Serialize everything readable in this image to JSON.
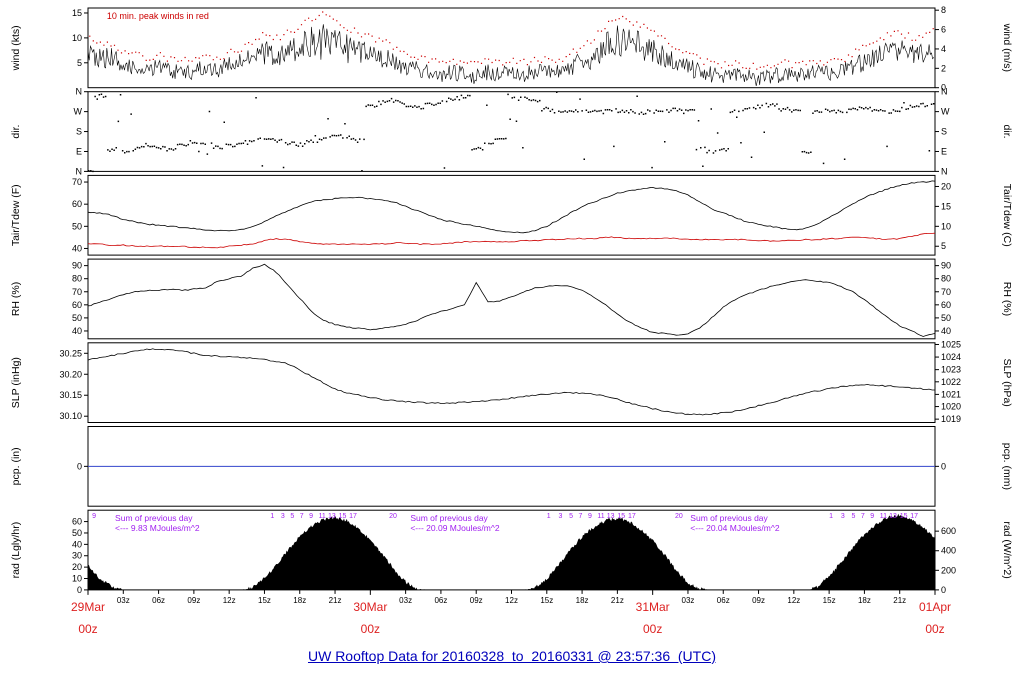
{
  "title": "UW Rooftop Data for 20160328  to  20160331 @ 23:57:36  (UTC)",
  "chart_data": {
    "type": "line",
    "x_unit": "hours since 29Mar 00z (UTC)",
    "x_range": [
      0,
      72
    ],
    "colors": {
      "title": "#0000bb",
      "red": "#cc0000",
      "red_day": "#dd2222",
      "purple": "#a020f0",
      "pcp": "#3344cc",
      "black": "#000000"
    },
    "x_minor_ticks": [
      {
        "t": 3,
        "label": "03z"
      },
      {
        "t": 6,
        "label": "06z"
      },
      {
        "t": 9,
        "label": "09z"
      },
      {
        "t": 12,
        "label": "12z"
      },
      {
        "t": 15,
        "label": "15z"
      },
      {
        "t": 18,
        "label": "18z"
      },
      {
        "t": 21,
        "label": "21z"
      },
      {
        "t": 27,
        "label": "03z"
      },
      {
        "t": 30,
        "label": "06z"
      },
      {
        "t": 33,
        "label": "09z"
      },
      {
        "t": 36,
        "label": "12z"
      },
      {
        "t": 39,
        "label": "15z"
      },
      {
        "t": 42,
        "label": "18z"
      },
      {
        "t": 45,
        "label": "21z"
      },
      {
        "t": 51,
        "label": "03z"
      },
      {
        "t": 54,
        "label": "06z"
      },
      {
        "t": 57,
        "label": "09z"
      },
      {
        "t": 60,
        "label": "12z"
      },
      {
        "t": 63,
        "label": "15z"
      },
      {
        "t": 66,
        "label": "18z"
      },
      {
        "t": 69,
        "label": "21z"
      }
    ],
    "x_day_labels": [
      {
        "t": 0,
        "line1": "29Mar",
        "line2": "00z"
      },
      {
        "t": 24,
        "line1": "30Mar",
        "line2": "00z"
      },
      {
        "t": 48,
        "line1": "31Mar",
        "line2": "00z"
      },
      {
        "t": 72,
        "line1": "01Apr",
        "line2": "00z"
      }
    ],
    "panels": [
      {
        "id": "wind",
        "left_label": "wind (kts)",
        "right_label": "wind (m/s)",
        "domain": [
          0,
          16
        ],
        "left_ticks": [
          {
            "v": 5,
            "label": "5"
          },
          {
            "v": 10,
            "label": "10"
          },
          {
            "v": 15,
            "label": "15"
          }
        ],
        "right_ticks": [
          {
            "v": 0,
            "label": "0"
          },
          {
            "v": 3.89,
            "label": "2"
          },
          {
            "v": 7.78,
            "label": "4"
          },
          {
            "v": 11.67,
            "label": "6"
          },
          {
            "v": 15.56,
            "label": "8"
          }
        ]
      },
      {
        "id": "dir",
        "left_label": "dir.",
        "right_label": "dir.",
        "domain": [
          0,
          360
        ],
        "left_ticks": [
          {
            "v": 0,
            "label": "N"
          },
          {
            "v": 90,
            "label": "E"
          },
          {
            "v": 180,
            "label": "S"
          },
          {
            "v": 270,
            "label": "W"
          },
          {
            "v": 360,
            "label": "N"
          }
        ],
        "right_ticks": [
          {
            "v": 0,
            "label": "N"
          },
          {
            "v": 90,
            "label": "E"
          },
          {
            "v": 180,
            "label": "S"
          },
          {
            "v": 270,
            "label": "W"
          },
          {
            "v": 360,
            "label": "N"
          }
        ]
      },
      {
        "id": "temp",
        "left_label": "Tair/Tdew (F)",
        "right_label": "Tair/Tdew (C)",
        "domain": [
          37,
          73
        ],
        "left_ticks": [
          {
            "v": 40,
            "label": "40"
          },
          {
            "v": 50,
            "label": "50"
          },
          {
            "v": 60,
            "label": "60"
          },
          {
            "v": 70,
            "label": "70"
          }
        ],
        "right_ticks": [
          {
            "v": 41,
            "label": "5"
          },
          {
            "v": 50,
            "label": "10"
          },
          {
            "v": 59,
            "label": "15"
          },
          {
            "v": 68,
            "label": "20"
          }
        ]
      },
      {
        "id": "rh",
        "left_label": "RH (%)",
        "right_label": "RH (%)",
        "domain": [
          34,
          95
        ],
        "left_ticks": [
          {
            "v": 40,
            "label": "40"
          },
          {
            "v": 50,
            "label": "50"
          },
          {
            "v": 60,
            "label": "60"
          },
          {
            "v": 70,
            "label": "70"
          },
          {
            "v": 80,
            "label": "80"
          },
          {
            "v": 90,
            "label": "90"
          }
        ],
        "right_ticks": [
          {
            "v": 40,
            "label": "40"
          },
          {
            "v": 50,
            "label": "50"
          },
          {
            "v": 60,
            "label": "60"
          },
          {
            "v": 70,
            "label": "70"
          },
          {
            "v": 80,
            "label": "80"
          },
          {
            "v": 90,
            "label": "90"
          }
        ]
      },
      {
        "id": "slp",
        "left_label": "SLP (inHg)",
        "right_label": "SLP (hPa)",
        "domain": [
          30.085,
          30.275
        ],
        "left_ticks": [
          {
            "v": 30.1,
            "label": "30.10"
          },
          {
            "v": 30.15,
            "label": "30.15"
          },
          {
            "v": 30.2,
            "label": "30.20"
          },
          {
            "v": 30.25,
            "label": "30.25"
          }
        ],
        "right_ticks": [
          {
            "v": 30.093,
            "label": "1019"
          },
          {
            "v": 30.123,
            "label": "1020"
          },
          {
            "v": 30.152,
            "label": "1021"
          },
          {
            "v": 30.182,
            "label": "1022"
          },
          {
            "v": 30.211,
            "label": "1023"
          },
          {
            "v": 30.241,
            "label": "1024"
          },
          {
            "v": 30.271,
            "label": "1025"
          }
        ]
      },
      {
        "id": "pcp",
        "left_label": "pcp. (in)",
        "right_label": "pcp. (mm)",
        "domain": [
          -0.5,
          0.5
        ],
        "left_ticks": [
          {
            "v": 0,
            "label": "0"
          }
        ],
        "right_ticks": [
          {
            "v": 0,
            "label": "0"
          }
        ]
      },
      {
        "id": "rad",
        "left_label": "rad (Lgly/hr)",
        "right_label": "rad (W/m^2)",
        "domain": [
          0,
          70
        ],
        "left_ticks": [
          {
            "v": 0,
            "label": "0"
          },
          {
            "v": 10,
            "label": "10"
          },
          {
            "v": 20,
            "label": "20"
          },
          {
            "v": 30,
            "label": "30"
          },
          {
            "v": 40,
            "label": "40"
          },
          {
            "v": 50,
            "label": "50"
          },
          {
            "v": 60,
            "label": "60"
          }
        ],
        "right_ticks": [
          {
            "v": 0,
            "label": "0"
          },
          {
            "v": 17.2,
            "label": "200"
          },
          {
            "v": 34.4,
            "label": "400"
          },
          {
            "v": 51.6,
            "label": "600"
          }
        ]
      }
    ],
    "series": {
      "wind_mean_kts": [
        7,
        5.5,
        6,
        4.5,
        4,
        3.5,
        4,
        3,
        3.5,
        3,
        4,
        3.5,
        4,
        5,
        6,
        7,
        6.5,
        7,
        8,
        8.5,
        9,
        8,
        7.5,
        7,
        6.5,
        6,
        5,
        4,
        3.5,
        3,
        2.5,
        3,
        2.5,
        2,
        3,
        2.5,
        3,
        2.5,
        3,
        3.5,
        3,
        4,
        5,
        6,
        8,
        9,
        9,
        8,
        7,
        6,
        5,
        4,
        3,
        2.5,
        2,
        2.5,
        2,
        1.5,
        2,
        2.5,
        2,
        2.5,
        3,
        2.5,
        3,
        4,
        5,
        6,
        7,
        7,
        6.5,
        7,
        8
      ],
      "wind_peak_kts": [
        10,
        9,
        9,
        7,
        6.5,
        6,
        6.5,
        5.5,
        6,
        5.5,
        6.5,
        6,
        7,
        8,
        9.5,
        11,
        10,
        11,
        12.5,
        14,
        15,
        13.5,
        12,
        11,
        10,
        9.5,
        8,
        6.5,
        6,
        5.5,
        5,
        5.5,
        5,
        4.5,
        5.5,
        5,
        5.5,
        5,
        5.5,
        6,
        5.5,
        7,
        8,
        10,
        12.5,
        14,
        13.5,
        12.5,
        11,
        9.5,
        8,
        7,
        5.5,
        5,
        4.5,
        5,
        4.5,
        4,
        4.5,
        5,
        4.5,
        5,
        5.5,
        5,
        5.5,
        7,
        8,
        9,
        10.5,
        11,
        10,
        10.5,
        11.5
      ],
      "dir_deg": [
        355,
        340,
        100,
        85,
        100,
        120,
        110,
        100,
        120,
        130,
        120,
        110,
        120,
        130,
        140,
        150,
        140,
        130,
        120,
        140,
        150,
        160,
        150,
        140,
        300,
        310,
        320,
        300,
        290,
        300,
        310,
        330,
        340,
        100,
        120,
        150,
        340,
        330,
        320,
        280,
        270,
        270,
        275,
        270,
        270,
        275,
        270,
        265,
        270,
        270,
        280,
        270,
        100,
        90,
        100,
        270,
        280,
        290,
        300,
        280,
        270,
        90,
        270,
        275,
        270,
        280,
        290,
        280,
        270,
        280,
        290,
        300,
        310
      ],
      "tair_f": [
        56.5,
        56,
        55,
        53,
        52,
        51,
        50.5,
        50,
        49.5,
        49,
        48.5,
        48,
        48,
        48.5,
        50,
        52,
        55,
        57,
        59,
        61,
        62,
        62.5,
        63,
        63,
        62.5,
        62,
        61,
        59,
        57,
        55,
        53,
        52,
        51,
        50,
        49,
        48,
        47.5,
        47,
        48,
        50,
        53,
        56,
        59,
        61,
        63,
        65,
        66,
        67,
        67.5,
        67,
        66,
        64,
        61,
        58,
        56,
        54,
        52,
        51,
        50,
        49,
        48.5,
        49,
        51,
        54,
        57,
        60,
        63,
        65,
        67,
        68.5,
        69.5,
        70,
        70.5
      ],
      "tdew_f": [
        42,
        42,
        41.5,
        41.5,
        41,
        41,
        41,
        41,
        41,
        40.5,
        40.5,
        40.5,
        41,
        41.5,
        42,
        43.5,
        44.5,
        44,
        43,
        42.5,
        42,
        42,
        42,
        42,
        42,
        42,
        42.5,
        42.5,
        42,
        42,
        42,
        42.5,
        43,
        43,
        43,
        43,
        43,
        43.5,
        43.5,
        44,
        44,
        44.5,
        44.5,
        44.5,
        45,
        45,
        44.5,
        44.5,
        44.5,
        44.5,
        44.5,
        44,
        44,
        44,
        44,
        44,
        44,
        43.5,
        43.5,
        43.5,
        43.5,
        44,
        44,
        44.5,
        44.5,
        45,
        45,
        44.5,
        44,
        44.5,
        45.5,
        46.5,
        47
      ],
      "rh_pct": [
        59,
        62,
        65,
        68,
        70,
        71,
        71,
        72,
        71,
        72,
        73,
        78,
        80,
        82,
        88,
        91,
        85,
        75,
        65,
        55,
        48,
        45,
        43,
        42,
        41,
        42,
        43,
        45,
        48,
        52,
        55,
        57,
        60,
        77,
        62,
        63,
        66,
        70,
        73,
        74,
        75,
        74,
        71,
        66,
        60,
        53,
        47,
        42,
        39,
        38,
        37,
        38,
        42,
        50,
        58,
        64,
        68,
        71,
        74,
        76,
        78,
        79,
        78,
        77,
        74,
        70,
        64,
        57,
        50,
        44,
        40,
        36,
        38
      ],
      "slp_inhg": [
        30.235,
        30.24,
        30.245,
        30.25,
        30.255,
        30.26,
        30.26,
        30.258,
        30.255,
        30.25,
        30.245,
        30.243,
        30.242,
        30.24,
        30.238,
        30.235,
        30.23,
        30.225,
        30.21,
        30.195,
        30.18,
        30.165,
        30.155,
        30.15,
        30.145,
        30.14,
        30.138,
        30.135,
        30.133,
        30.132,
        30.131,
        30.132,
        30.133,
        30.135,
        30.137,
        30.14,
        30.143,
        30.147,
        30.15,
        30.153,
        30.155,
        30.156,
        30.155,
        30.152,
        30.147,
        30.14,
        30.132,
        30.125,
        30.118,
        30.112,
        30.108,
        30.105,
        30.104,
        30.105,
        30.108,
        30.112,
        30.118,
        30.125,
        30.132,
        30.14,
        30.148,
        30.155,
        30.16,
        30.165,
        30.17,
        30.173,
        30.175,
        30.174,
        30.172,
        30.17,
        30.168,
        30.165,
        30.163
      ],
      "pcp_in": 0,
      "rad_lyhr": [
        22,
        10,
        3,
        0,
        0,
        0,
        0,
        0,
        0,
        0,
        0,
        0,
        0,
        0,
        2,
        10,
        22,
        35,
        47,
        56,
        62,
        64,
        61,
        54,
        44,
        32,
        18,
        7,
        1,
        0,
        0,
        0,
        0,
        0,
        0,
        0,
        0,
        0,
        2,
        10,
        22,
        35,
        47,
        55,
        61,
        63,
        60,
        53,
        43,
        31,
        17,
        6,
        1,
        0,
        0,
        0,
        0,
        0,
        0,
        0,
        0,
        0,
        3,
        12,
        24,
        37,
        49,
        58,
        64,
        66,
        62,
        55,
        45
      ]
    },
    "annotations": {
      "wind_note": "10 min. peak winds in red",
      "rad_sums": [
        {
          "t": 2.3,
          "line1": "Sum of previous day",
          "line2": "<--- 9.83 MJoules/m^2"
        },
        {
          "t": 27.4,
          "line1": "Sum of previous day",
          "line2": "<--- 20.09 MJoules/m^2"
        },
        {
          "t": 51.2,
          "line1": "Sum of previous day",
          "line2": "<--- 20.04 MJoules/m^2"
        }
      ],
      "rad_counters": [
        {
          "t": 0.35,
          "label": "9"
        },
        {
          "t": 15.5,
          "label": "1"
        },
        {
          "t": 16.4,
          "label": "3"
        },
        {
          "t": 17.2,
          "label": "5"
        },
        {
          "t": 18.0,
          "label": "7"
        },
        {
          "t": 18.8,
          "label": "9"
        },
        {
          "t": 19.6,
          "label": "11"
        },
        {
          "t": 20.4,
          "label": "13"
        },
        {
          "t": 21.3,
          "label": "15"
        },
        {
          "t": 22.2,
          "label": "17"
        },
        {
          "t": 25.6,
          "label": "20"
        },
        {
          "t": 39.0,
          "label": "1"
        },
        {
          "t": 40.0,
          "label": "3"
        },
        {
          "t": 40.9,
          "label": "5"
        },
        {
          "t": 41.7,
          "label": "7"
        },
        {
          "t": 42.5,
          "label": "9"
        },
        {
          "t": 43.3,
          "label": "11"
        },
        {
          "t": 44.1,
          "label": "13"
        },
        {
          "t": 45.0,
          "label": "15"
        },
        {
          "t": 45.9,
          "label": "17"
        },
        {
          "t": 49.9,
          "label": "20"
        },
        {
          "t": 63.0,
          "label": "1"
        },
        {
          "t": 64.0,
          "label": "3"
        },
        {
          "t": 64.9,
          "label": "5"
        },
        {
          "t": 65.7,
          "label": "7"
        },
        {
          "t": 66.5,
          "label": "9"
        },
        {
          "t": 67.3,
          "label": "11"
        },
        {
          "t": 68.1,
          "label": "13"
        },
        {
          "t": 69.0,
          "label": "15"
        },
        {
          "t": 69.9,
          "label": "17"
        }
      ]
    }
  }
}
